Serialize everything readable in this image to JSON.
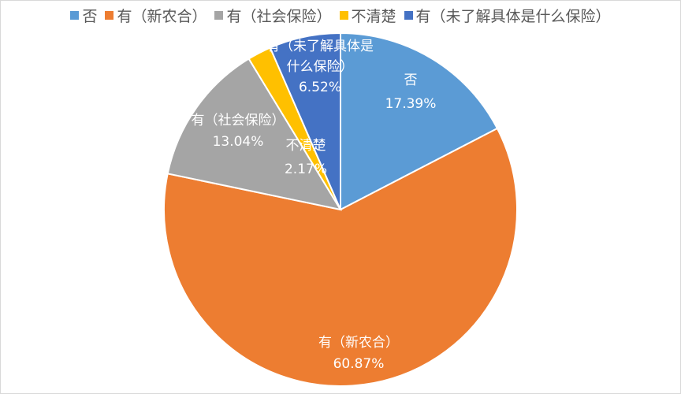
{
  "chart_data": {
    "type": "pie",
    "categories": [
      "否",
      "有（新农合）",
      "有（社会保险）",
      "不清楚",
      "有（未了解具体是什么保险）"
    ],
    "values": [
      17.39,
      60.87,
      13.04,
      2.17,
      6.52
    ],
    "value_labels": [
      "17.39%",
      "60.87%",
      "13.04%",
      "2.17%",
      "6.52%"
    ],
    "colors": [
      "#5B9BD5",
      "#ED7D31",
      "#A5A5A5",
      "#FFC000",
      "#4472C4"
    ],
    "slice_label_lines": [
      [
        "否"
      ],
      [
        "有（新农合）"
      ],
      [
        "有（社会保险）"
      ],
      [
        "不清楚"
      ],
      [
        "有（未了解具体是",
        "什么保险）"
      ]
    ],
    "legend_position": "top",
    "start_angle": "12 o'clock",
    "direction": "clockwise"
  }
}
